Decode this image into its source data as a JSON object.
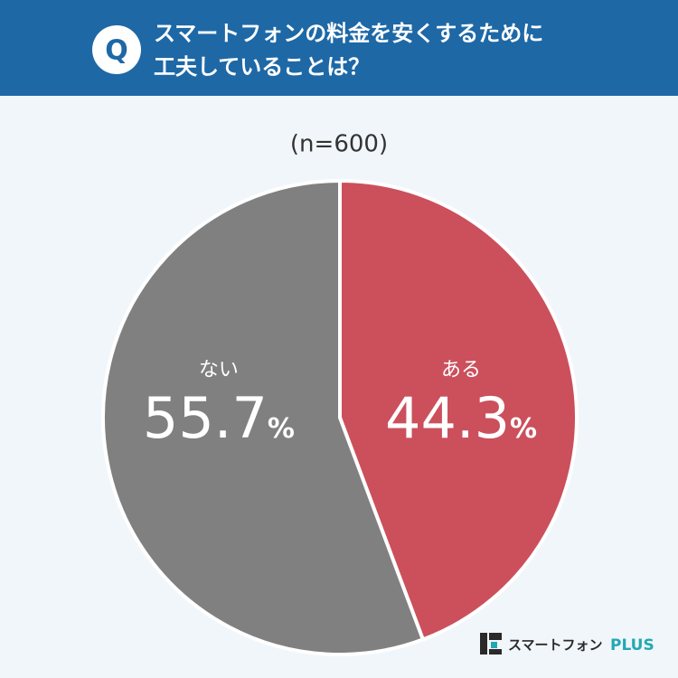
{
  "chart_data": {
    "type": "pie",
    "title": [
      "スマートフォンの料金を安くするために",
      "工夫していることは？"
    ],
    "badge": "Q",
    "subtitle": "(n=600)",
    "categories": [
      "ある",
      "ない"
    ],
    "values": [
      44.3,
      55.7
    ],
    "value_labels": [
      "44.3%",
      "55.7%"
    ],
    "colors": [
      "#cb505c",
      "#808080"
    ],
    "logo": [
      "スマートフォン",
      "PLUS"
    ]
  }
}
